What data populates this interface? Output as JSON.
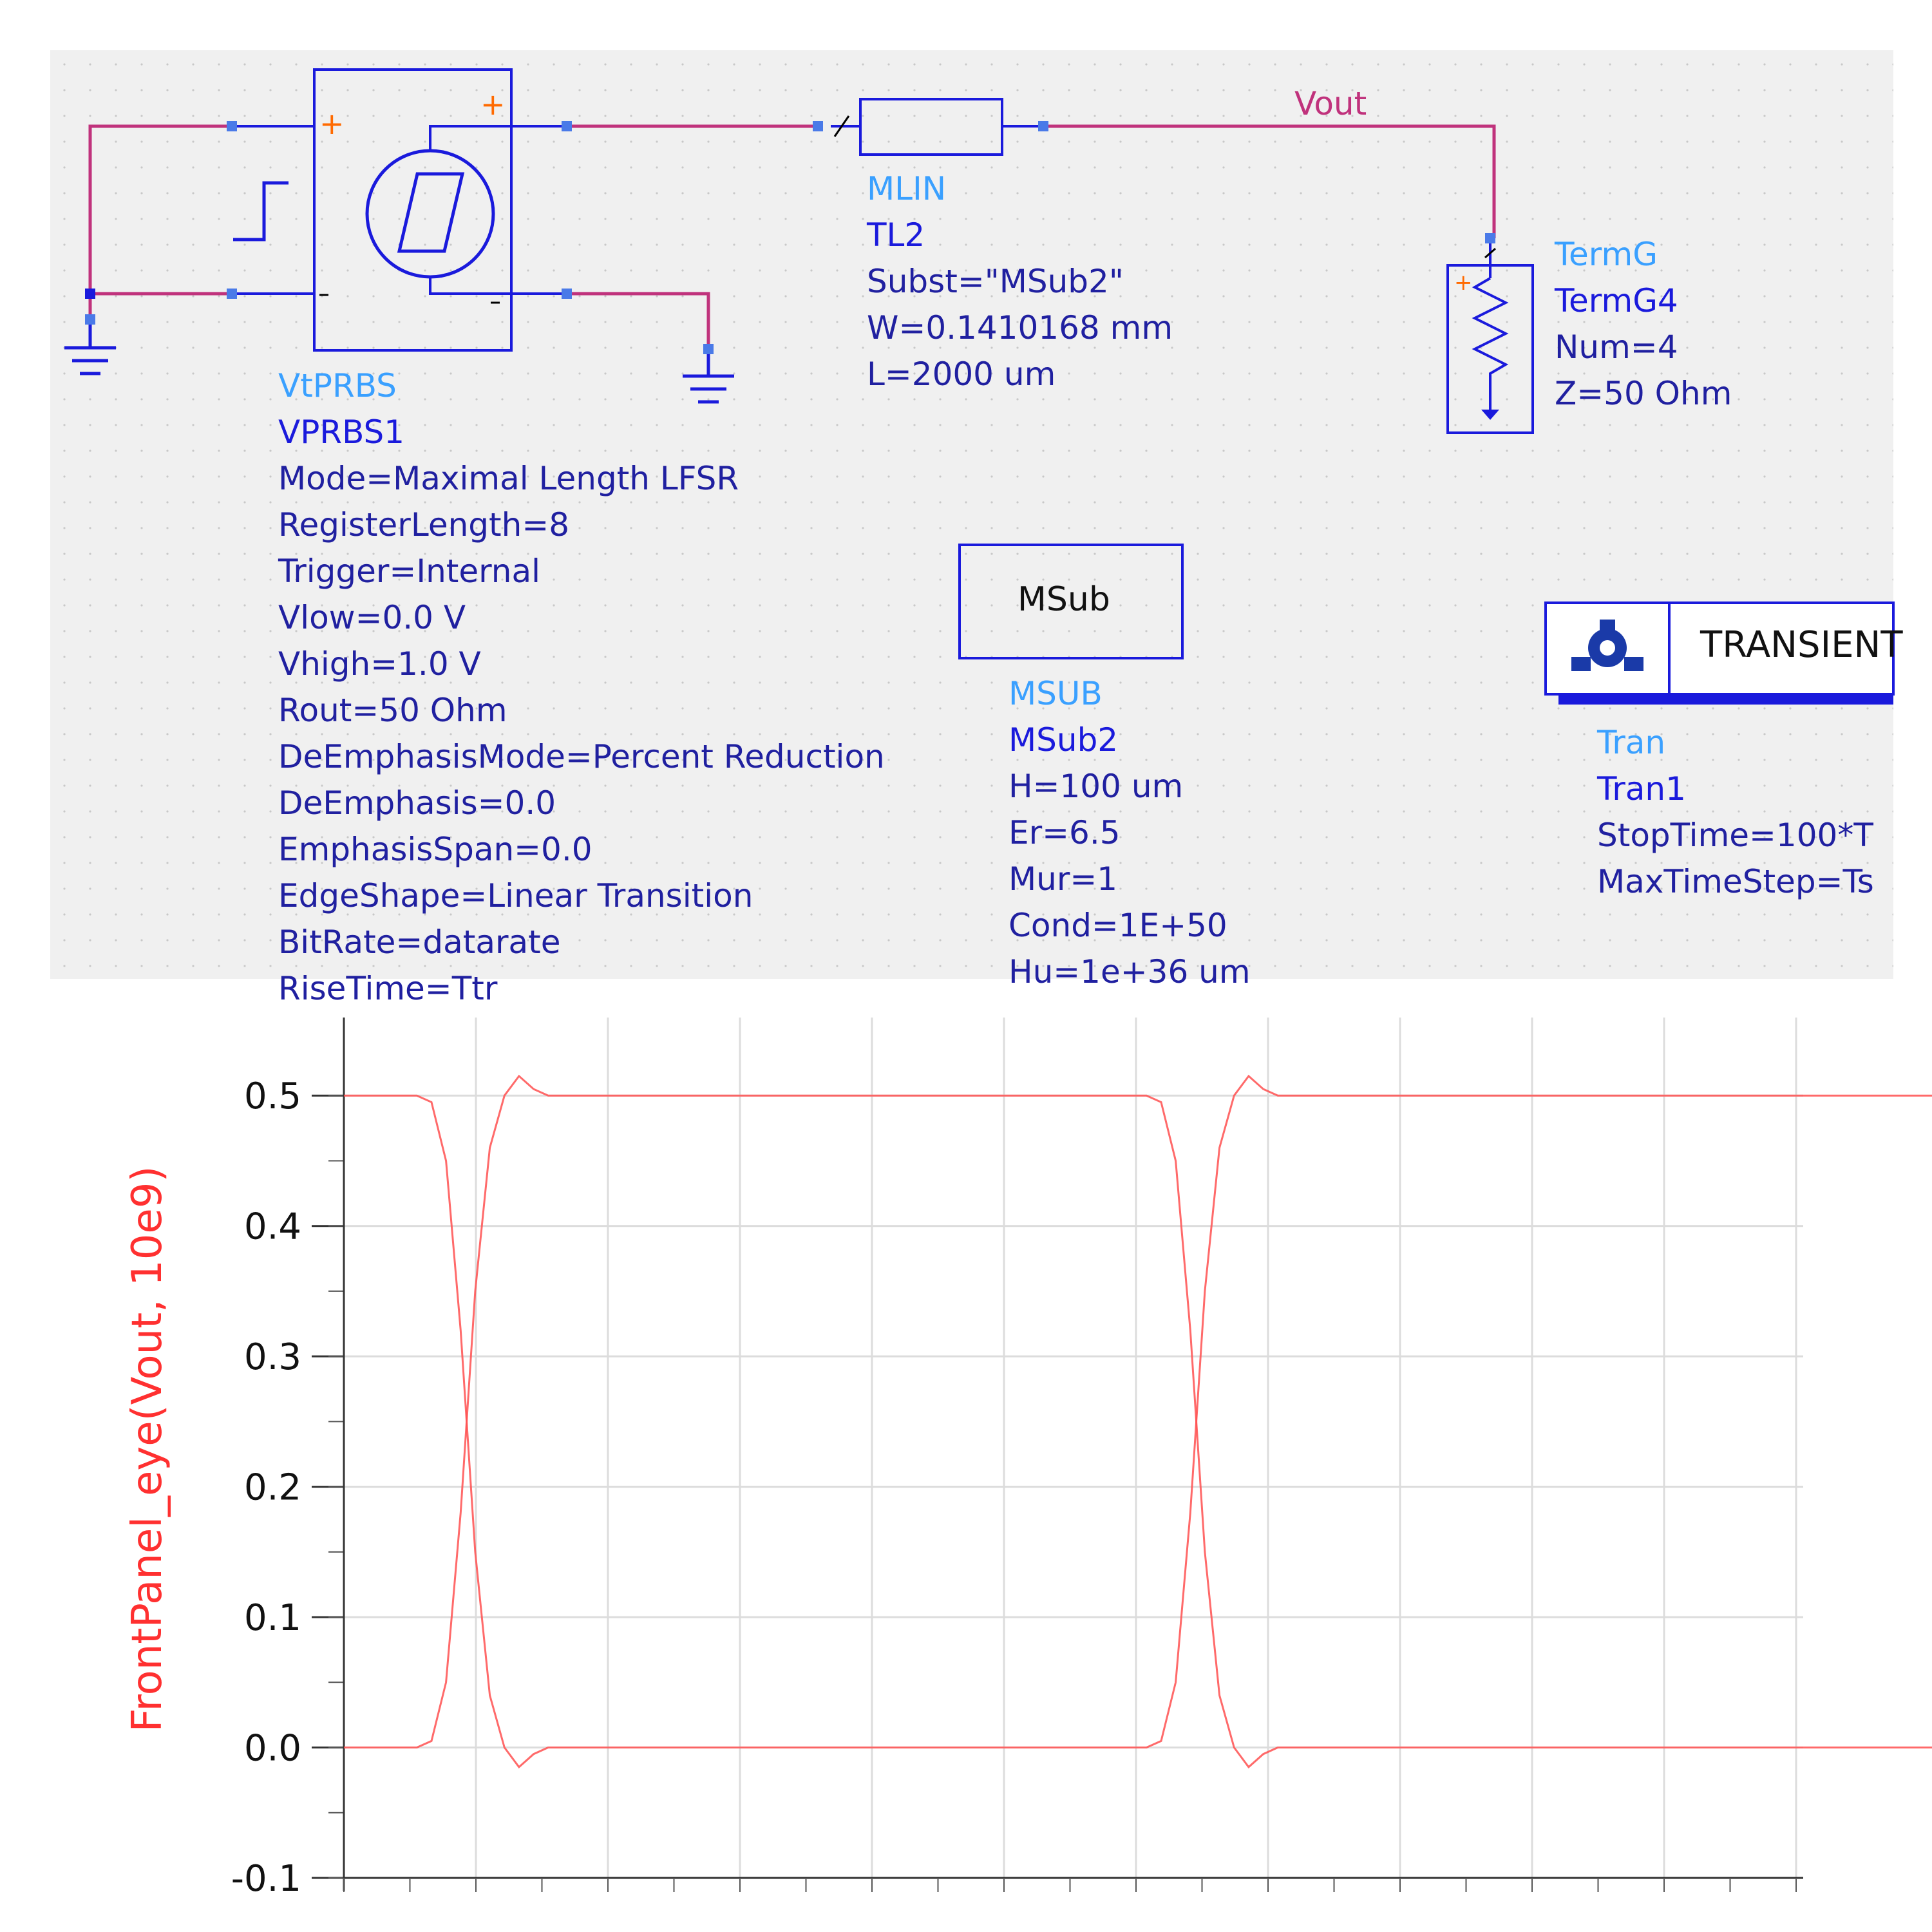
{
  "schematic": {
    "net_label": "Vout",
    "vprbs": {
      "type": "VtPRBS",
      "instance": "VPRBS1",
      "params": [
        "Mode=Maximal Length LFSR",
        "RegisterLength=8",
        "Trigger=Internal",
        "Vlow=0.0 V",
        "Vhigh=1.0 V",
        "Rout=50 Ohm",
        "DeEmphasisMode=Percent Reduction",
        "DeEmphasis=0.0",
        "EmphasisSpan=0.0",
        "EdgeShape=Linear Transition",
        "BitRate=datarate",
        "RiseTime=Ttr"
      ]
    },
    "mlin": {
      "type": "MLIN",
      "instance": "TL2",
      "params": [
        "Subst=\"MSub2\"",
        "W=0.1410168 mm",
        "L=2000 um"
      ]
    },
    "termg": {
      "type": "TermG",
      "instance": "TermG4",
      "params": [
        "Num=4",
        "Z=50 Ohm"
      ]
    },
    "msub": {
      "box_label": "MSub",
      "type": "MSUB",
      "instance": "MSub2",
      "params": [
        "H=100 um",
        "Er=6.5",
        "Mur=1",
        "Cond=1E+50",
        "Hu=1e+36 um"
      ]
    },
    "tran": {
      "box_label": "TRANSIENT",
      "type": "Tran",
      "instance": "Tran1",
      "params": [
        "StopTime=100*T",
        "MaxTimeStep=Ts"
      ]
    },
    "colors": {
      "wire": "#c0327c",
      "component": "#1a1adc",
      "type_label": "#3aa0ff",
      "param_text": "#2020a0",
      "pin_plus": "#ff6a00"
    }
  },
  "chart_data": {
    "type": "line",
    "title": "",
    "xlabel": "",
    "ylabel": "FrontPanel_eye(Vout, 10e9)",
    "ylim": [
      -0.1,
      0.55
    ],
    "xlim": [
      0,
      200
    ],
    "yticks": [
      "0.5",
      "0.4",
      "0.3",
      "0.2",
      "0.1",
      "0.0",
      "-0.1"
    ],
    "ytick_values": [
      0.5,
      0.4,
      0.3,
      0.2,
      0.1,
      0.0,
      -0.1
    ],
    "grid": true,
    "color": "#ff5050",
    "series": [
      {
        "x": [
          0,
          10,
          12,
          14,
          16,
          18,
          20,
          22,
          24,
          26,
          28,
          30,
          100
        ],
        "values": [
          0.5,
          0.5,
          0.495,
          0.45,
          0.32,
          0.15,
          0.04,
          0.0,
          -0.015,
          -0.005,
          0.0,
          0.0,
          0.0
        ]
      },
      {
        "x": [
          0,
          10,
          12,
          14,
          16,
          18,
          20,
          22,
          24,
          26,
          28,
          30,
          100
        ],
        "values": [
          0.0,
          0.0,
          0.005,
          0.05,
          0.18,
          0.35,
          0.46,
          0.5,
          0.515,
          0.505,
          0.5,
          0.5,
          0.5
        ]
      },
      {
        "x": [
          100,
          110,
          112,
          114,
          116,
          118,
          120,
          122,
          124,
          126,
          128,
          130,
          200
        ],
        "values": [
          0.5,
          0.5,
          0.495,
          0.45,
          0.32,
          0.15,
          0.04,
          0.0,
          -0.015,
          -0.005,
          0.0,
          0.0,
          0.0
        ]
      },
      {
        "x": [
          100,
          110,
          112,
          114,
          116,
          118,
          120,
          122,
          124,
          126,
          128,
          130,
          200
        ],
        "values": [
          0.0,
          0.0,
          0.005,
          0.05,
          0.18,
          0.35,
          0.46,
          0.5,
          0.515,
          0.505,
          0.5,
          0.5,
          0.5
        ]
      },
      {
        "x": [
          200,
          220
        ],
        "values": [
          0.5,
          0.5
        ]
      },
      {
        "x": [
          200,
          220
        ],
        "values": [
          0.0,
          0.0
        ]
      }
    ]
  }
}
